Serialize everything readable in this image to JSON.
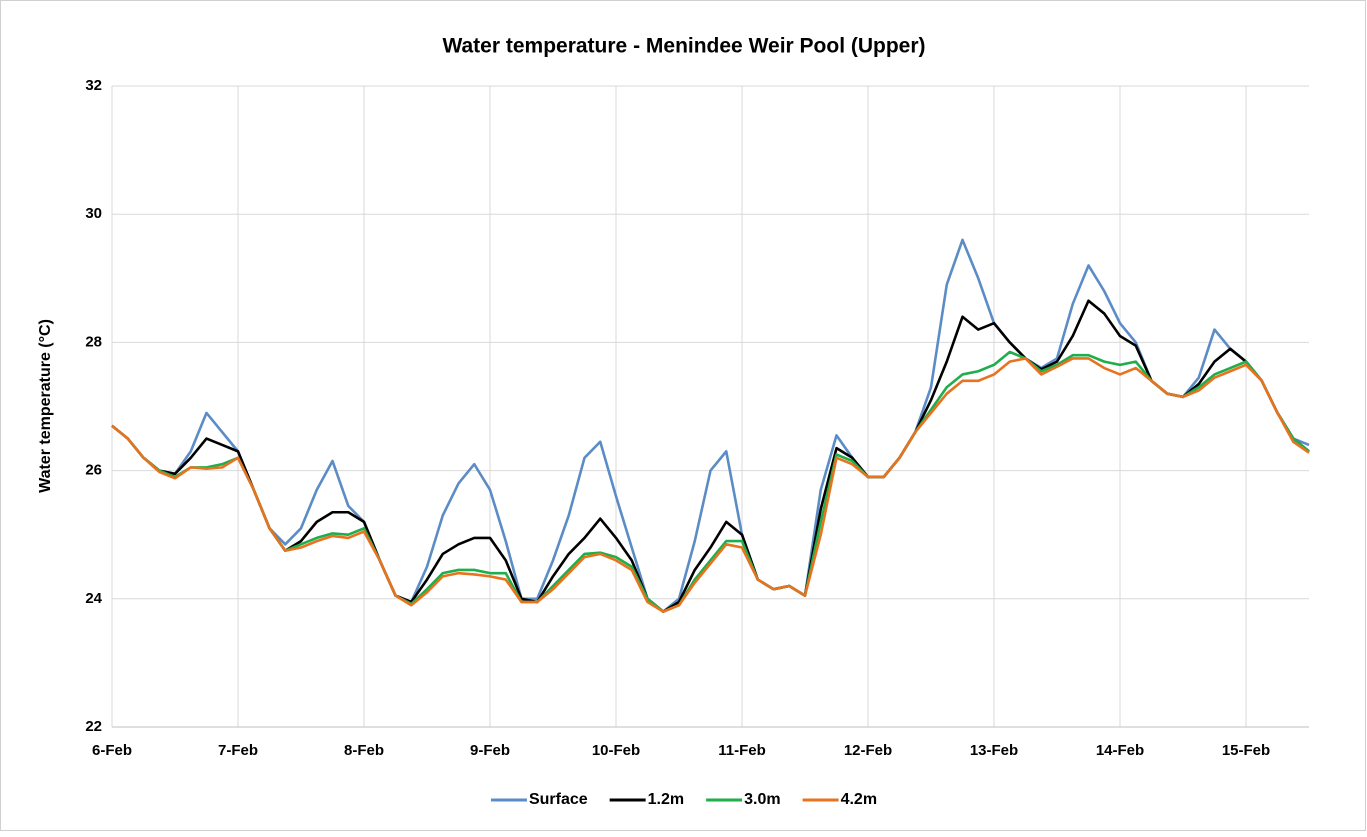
{
  "chart_data": {
    "type": "line",
    "title": "Water temperature - Menindee Weir Pool (Upper)",
    "y_label": "Water temperature (°C)",
    "x": [
      6,
      6.125,
      6.25,
      6.375,
      6.5,
      6.625,
      6.75,
      6.875,
      7,
      7.125,
      7.25,
      7.375,
      7.5,
      7.625,
      7.75,
      7.875,
      8,
      8.125,
      8.25,
      8.375,
      8.5,
      8.625,
      8.75,
      8.875,
      9,
      9.125,
      9.25,
      9.375,
      9.5,
      9.625,
      9.75,
      9.875,
      10,
      10.125,
      10.25,
      10.375,
      10.5,
      10.625,
      10.75,
      10.875,
      11,
      11.125,
      11.25,
      11.375,
      11.5,
      11.625,
      11.75,
      11.875,
      12,
      12.125,
      12.25,
      12.375,
      12.5,
      12.625,
      12.75,
      12.875,
      13,
      13.125,
      13.25,
      13.375,
      13.5,
      13.625,
      13.75,
      13.875,
      14,
      14.125,
      14.25,
      14.375,
      14.5,
      14.625,
      14.75,
      14.875,
      15,
      15.125,
      15.25,
      15.375,
      15.5
    ],
    "series": [
      {
        "name": "Surface",
        "color": "#5b8cc6",
        "values": [
          26.7,
          26.5,
          26.2,
          26.0,
          25.95,
          26.3,
          26.9,
          26.6,
          26.3,
          25.7,
          25.1,
          24.85,
          25.1,
          25.7,
          26.15,
          25.45,
          25.2,
          24.6,
          24.05,
          23.95,
          24.5,
          25.3,
          25.8,
          26.1,
          25.7,
          24.9,
          24.0,
          24.0,
          24.6,
          25.3,
          26.2,
          26.45,
          25.6,
          24.8,
          24.0,
          23.8,
          24.0,
          24.9,
          26.0,
          26.3,
          25.0,
          24.3,
          24.15,
          24.2,
          24.05,
          25.7,
          26.55,
          26.2,
          25.9,
          25.9,
          26.2,
          26.6,
          27.3,
          28.9,
          29.6,
          29.0,
          28.3,
          28.0,
          27.75,
          27.6,
          27.75,
          28.6,
          29.2,
          28.8,
          28.3,
          28.0,
          27.4,
          27.2,
          27.15,
          27.45,
          28.2,
          27.9,
          27.7,
          27.4,
          26.9,
          26.5,
          26.4
        ]
      },
      {
        "name": "1.2m",
        "color": "#000000",
        "values": [
          26.7,
          26.5,
          26.2,
          26.0,
          25.95,
          26.2,
          26.5,
          26.4,
          26.3,
          25.7,
          25.1,
          24.75,
          24.9,
          25.2,
          25.35,
          25.35,
          25.2,
          24.6,
          24.05,
          23.95,
          24.3,
          24.7,
          24.85,
          24.95,
          24.95,
          24.6,
          24.0,
          23.95,
          24.35,
          24.7,
          24.95,
          25.25,
          24.95,
          24.6,
          24.0,
          23.8,
          23.95,
          24.45,
          24.8,
          25.2,
          25.0,
          24.3,
          24.15,
          24.2,
          24.05,
          25.4,
          26.35,
          26.2,
          25.9,
          25.9,
          26.2,
          26.6,
          27.1,
          27.7,
          28.4,
          28.2,
          28.3,
          28.0,
          27.75,
          27.58,
          27.7,
          28.1,
          28.65,
          28.45,
          28.1,
          27.95,
          27.4,
          27.2,
          27.15,
          27.35,
          27.7,
          27.9,
          27.7,
          27.4,
          26.9,
          26.5,
          26.3
        ]
      },
      {
        "name": "3.0m",
        "color": "#1fae4b",
        "values": [
          26.7,
          26.5,
          26.2,
          26.0,
          25.9,
          26.05,
          26.05,
          26.1,
          26.2,
          25.7,
          25.1,
          24.75,
          24.85,
          24.95,
          25.02,
          25.0,
          25.1,
          24.6,
          24.05,
          23.92,
          24.15,
          24.4,
          24.45,
          24.45,
          24.4,
          24.4,
          23.95,
          23.95,
          24.2,
          24.45,
          24.7,
          24.72,
          24.65,
          24.5,
          24.0,
          23.8,
          23.9,
          24.3,
          24.6,
          24.9,
          24.9,
          24.3,
          24.15,
          24.2,
          24.05,
          25.2,
          26.25,
          26.15,
          25.9,
          25.9,
          26.2,
          26.6,
          26.95,
          27.3,
          27.5,
          27.55,
          27.65,
          27.85,
          27.75,
          27.55,
          27.65,
          27.8,
          27.8,
          27.7,
          27.65,
          27.7,
          27.4,
          27.2,
          27.15,
          27.3,
          27.5,
          27.6,
          27.7,
          27.4,
          26.9,
          26.5,
          26.3
        ]
      },
      {
        "name": "4.2m",
        "color": "#e8731f",
        "values": [
          26.7,
          26.5,
          26.2,
          25.98,
          25.88,
          26.05,
          26.03,
          26.05,
          26.2,
          25.7,
          25.1,
          24.75,
          24.8,
          24.9,
          24.98,
          24.95,
          25.05,
          24.6,
          24.05,
          23.9,
          24.1,
          24.35,
          24.4,
          24.38,
          24.35,
          24.3,
          23.95,
          23.95,
          24.15,
          24.4,
          24.65,
          24.7,
          24.6,
          24.45,
          23.95,
          23.8,
          23.9,
          24.25,
          24.55,
          24.85,
          24.8,
          24.3,
          24.15,
          24.2,
          24.05,
          25.0,
          26.2,
          26.1,
          25.9,
          25.9,
          26.2,
          26.6,
          26.9,
          27.2,
          27.4,
          27.4,
          27.5,
          27.7,
          27.75,
          27.5,
          27.62,
          27.75,
          27.75,
          27.6,
          27.5,
          27.6,
          27.4,
          27.2,
          27.15,
          27.25,
          27.45,
          27.55,
          27.65,
          27.4,
          26.9,
          26.45,
          26.28
        ]
      }
    ],
    "xlim": [
      6,
      15.5
    ],
    "xticks": [
      {
        "value": 6,
        "label": "6-Feb"
      },
      {
        "value": 7,
        "label": "7-Feb"
      },
      {
        "value": 8,
        "label": "8-Feb"
      },
      {
        "value": 9,
        "label": "9-Feb"
      },
      {
        "value": 10,
        "label": "10-Feb"
      },
      {
        "value": 11,
        "label": "11-Feb"
      },
      {
        "value": 12,
        "label": "12-Feb"
      },
      {
        "value": 13,
        "label": "13-Feb"
      },
      {
        "value": 14,
        "label": "14-Feb"
      },
      {
        "value": 15,
        "label": "15-Feb"
      }
    ],
    "ylim": [
      22,
      32
    ],
    "yticks": [
      22,
      24,
      26,
      28,
      30,
      32
    ],
    "grid": true,
    "legend": "bottom"
  }
}
